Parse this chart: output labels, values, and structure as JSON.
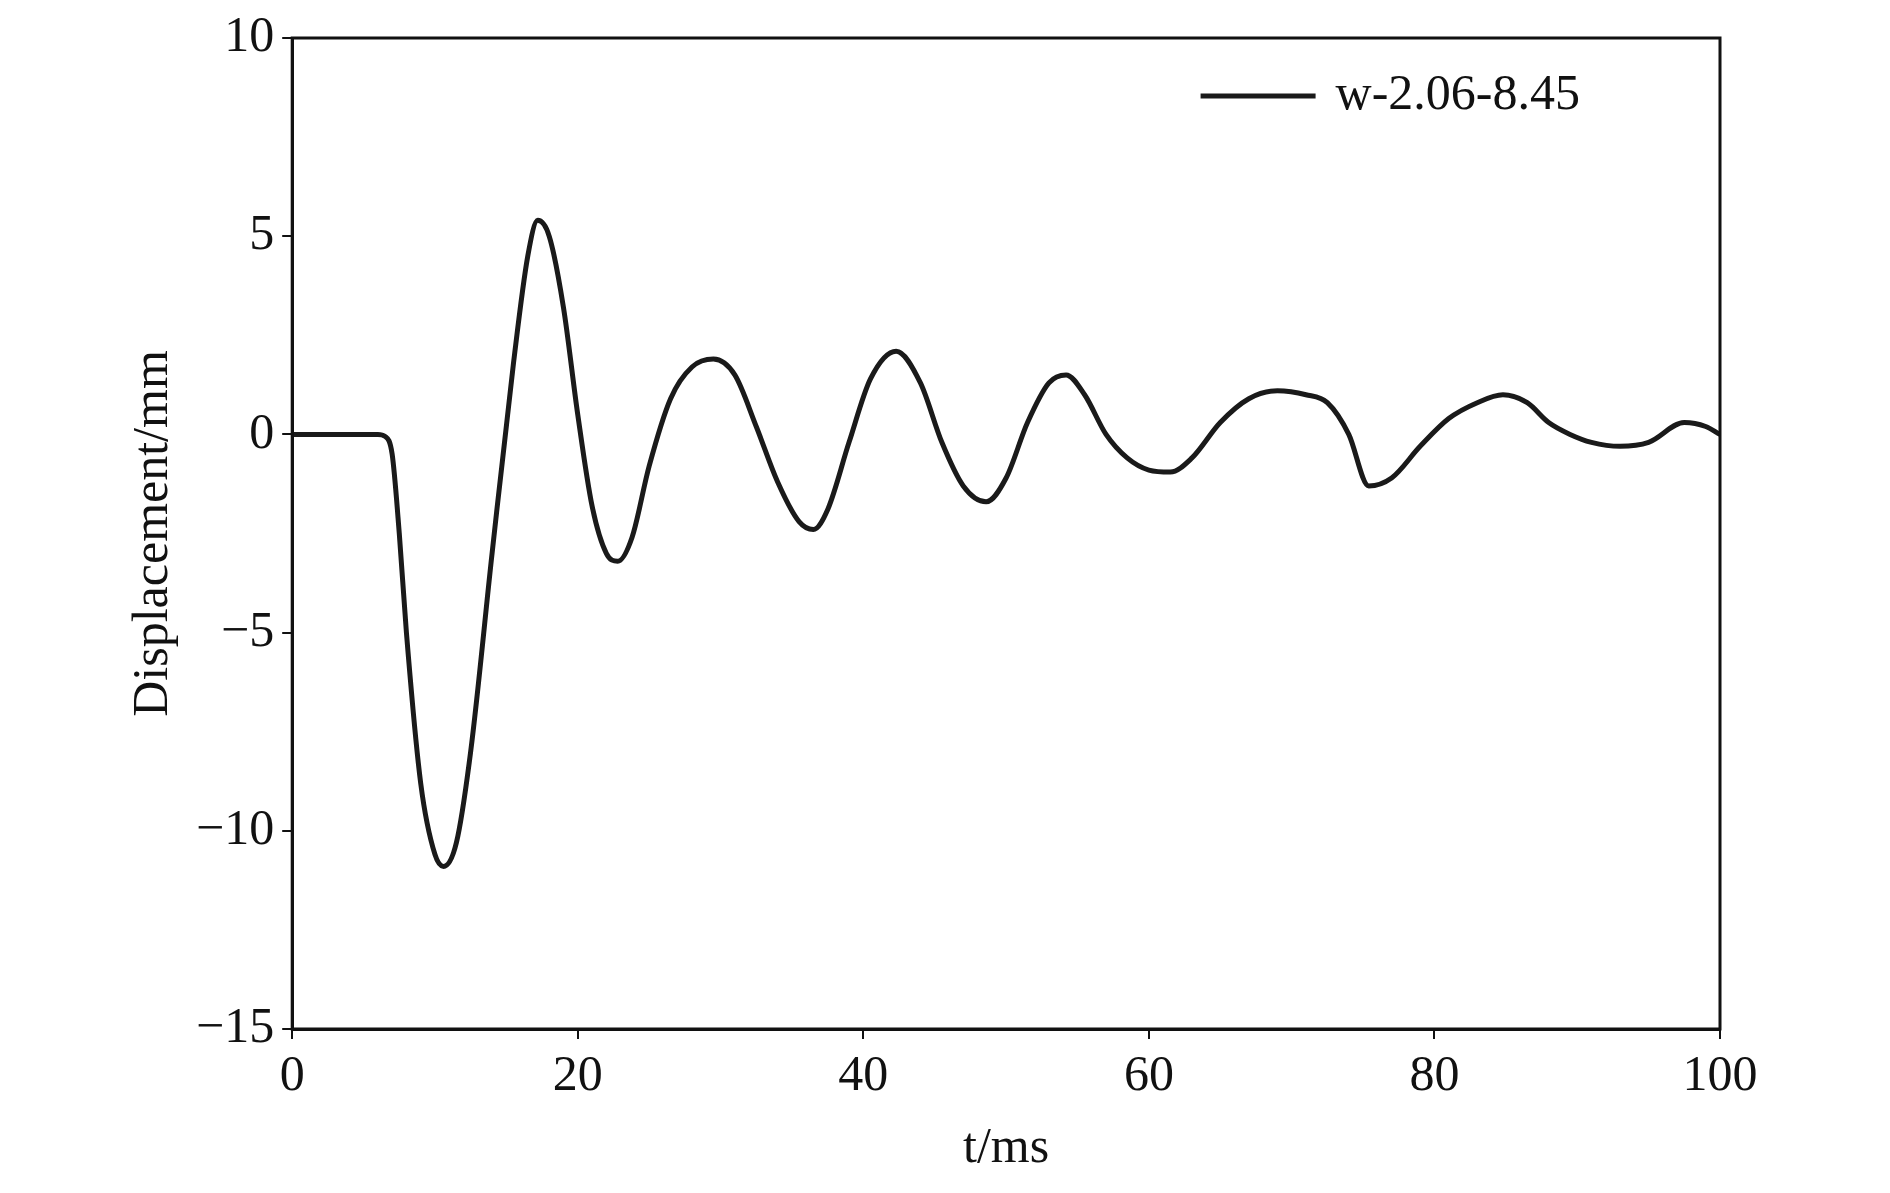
{
  "chart_data": {
    "type": "line",
    "xlabel": "t/ms",
    "ylabel": "Displacement/mm",
    "xlim": [
      0,
      100
    ],
    "xticks": [
      0,
      20,
      40,
      60,
      80,
      100
    ],
    "ylim": [
      -15,
      10
    ],
    "yticks": [
      -15,
      -10,
      -5,
      0,
      5,
      10
    ],
    "grid": false,
    "legend": "top right",
    "marker": "none",
    "line_style": "solid",
    "series": [
      {
        "name": "w-2.06-8.45",
        "color": "#1a1a1a",
        "x": [
          0,
          2,
          4,
          6,
          6.5,
          7,
          7.5,
          8,
          9,
          10,
          10.6,
          11.5,
          12.5,
          14,
          15.5,
          16.5,
          17.2,
          18,
          19,
          20,
          21,
          22,
          22.8,
          23.8,
          25,
          26.5,
          28,
          29.5,
          31,
          32.5,
          34,
          35.5,
          36.5,
          37.5,
          39,
          40.5,
          42.3,
          44,
          45.5,
          47,
          48.6,
          50,
          51.5,
          53,
          54.2,
          55.5,
          57,
          58.5,
          60,
          61.5,
          63,
          65,
          67,
          69,
          71,
          72.5,
          74,
          75.4,
          77,
          79,
          81,
          83,
          84.8,
          86.5,
          88,
          89.5,
          91,
          93,
          95,
          97.5,
          99,
          100
        ],
        "values": [
          0,
          0,
          0,
          0,
          -0.05,
          -0.5,
          -2.5,
          -5,
          -8.8,
          -10.6,
          -10.9,
          -10.3,
          -8,
          -3,
          1.8,
          4.5,
          5.4,
          5,
          3.2,
          0.5,
          -1.8,
          -3,
          -3.2,
          -2.6,
          -0.8,
          0.9,
          1.7,
          1.9,
          1.5,
          0.2,
          -1.2,
          -2.2,
          -2.4,
          -1.9,
          -0.2,
          1.4,
          2.1,
          1.3,
          -0.2,
          -1.3,
          -1.7,
          -1.1,
          0.3,
          1.3,
          1.5,
          1,
          0,
          -0.6,
          -0.9,
          -0.95,
          -0.6,
          0.3,
          0.9,
          1.1,
          1,
          0.8,
          0,
          -1.3,
          -1.1,
          -0.3,
          0.4,
          0.8,
          1,
          0.8,
          0.3,
          0,
          -0.2,
          -0.3,
          -0.2,
          0.3,
          0.2,
          0
        ]
      }
    ]
  }
}
